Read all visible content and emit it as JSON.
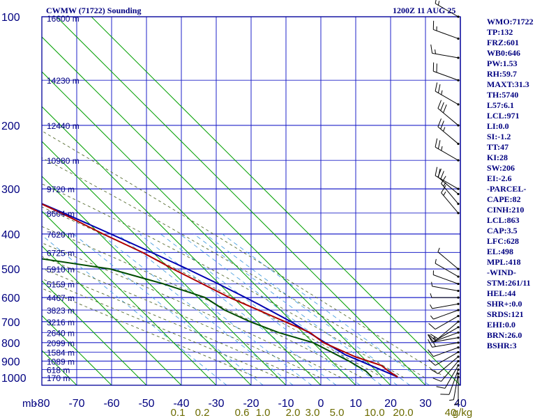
{
  "header": {
    "title": "CWMW (71722) Sounding",
    "time": "1200Z 11 AUG 25"
  },
  "stats": [
    "WMO:71722",
    "TP:132",
    "FRZ:601",
    "WB0:646",
    "PW:1.53",
    "RH:59.7",
    "MAXT:31.3",
    "TH:5740",
    "L57:6.1",
    "LCL:971",
    "LI:0.0",
    "SI:-1.2",
    "TT:47",
    "KI:28",
    "SW:206",
    "EI:-2.6",
    "-PARCEL-",
    "CAPE:82",
    "CINH:210",
    "LCL:863",
    "CAP:3.5",
    "LFC:628",
    "EL:498",
    "MPL:418",
    "-WIND-",
    "STM:261/11",
    "HEL:44",
    "SHR+:0.0",
    "SRDS:121",
    "EHI:0.0",
    "BRN:26.0",
    "BSHR:3"
  ],
  "colors": {
    "frame": "#000099",
    "grid": "#1e22c8",
    "dry_adiabat": "#00a000",
    "moist_adiabat": "#556b2f",
    "mixing_ratio": "#4aa0e0",
    "temperature": "#b00000",
    "dewpoint": "#004d00",
    "parcel": "#0000b0",
    "axis_text": "#000080",
    "mixing_text": "#6b6b00"
  },
  "chart_data": {
    "type": "skew-t",
    "pressure_levels": [
      100,
      200,
      300,
      400,
      500,
      600,
      700,
      800,
      900,
      1000
    ],
    "pressure_tick_labels": [
      "100",
      "200",
      "300",
      "400",
      "500",
      "600",
      "700",
      "800",
      "900",
      "1000"
    ],
    "axis_unit_label": "mb",
    "temperature_ticks": [
      -80,
      -70,
      -60,
      -50,
      -40,
      -30,
      -20,
      -10,
      0,
      10,
      20,
      30,
      40
    ],
    "temperature_tick_labels": [
      "-80",
      "-70",
      "-60",
      "-50",
      "-40",
      "-30",
      "-20",
      "-10",
      "0",
      "10",
      "20",
      "30",
      "40"
    ],
    "mixing_ratio_labels": [
      "0.1",
      "0.2",
      "0.6",
      "1.0",
      "2.0",
      "3.0",
      "5.0",
      "10.0",
      "20.0",
      "40",
      "g/kg"
    ],
    "height_labels": [
      {
        "p": 100,
        "label": "16600 m"
      },
      {
        "p": 150,
        "label": "14230 m"
      },
      {
        "p": 200,
        "label": "12440 m"
      },
      {
        "p": 250,
        "label": "10980 m"
      },
      {
        "p": 300,
        "label": "9720 m"
      },
      {
        "p": 350,
        "label": "8604 m"
      },
      {
        "p": 400,
        "label": "7620 m"
      },
      {
        "p": 450,
        "label": "6725 m"
      },
      {
        "p": 500,
        "label": "5910 m"
      },
      {
        "p": 550,
        "label": "5159 m"
      },
      {
        "p": 600,
        "label": "4467 m"
      },
      {
        "p": 650,
        "label": "3823 m"
      },
      {
        "p": 700,
        "label": "3216 m"
      },
      {
        "p": 750,
        "label": "2640 m"
      },
      {
        "p": 800,
        "label": "2099 m"
      },
      {
        "p": 850,
        "label": "1584 m"
      },
      {
        "p": 900,
        "label": "1089 m"
      },
      {
        "p": 950,
        "label": "618 m"
      },
      {
        "p": 1000,
        "label": "170 m"
      }
    ],
    "temperature_profile": [
      [
        996,
        24.4
      ],
      [
        960,
        23.5
      ],
      [
        925,
        23
      ],
      [
        875,
        18
      ],
      [
        800,
        13
      ],
      [
        750,
        12
      ],
      [
        700,
        8
      ],
      [
        600,
        -1
      ],
      [
        500,
        -9
      ],
      [
        450,
        -13
      ],
      [
        400,
        -19
      ],
      [
        350,
        -25
      ],
      [
        300,
        -33
      ],
      [
        250,
        -42
      ],
      [
        200,
        -52
      ],
      [
        180,
        -54
      ],
      [
        150,
        -63
      ],
      [
        140,
        -66
      ],
      [
        120,
        -61
      ],
      [
        110,
        -60
      ],
      [
        100,
        -58
      ]
    ],
    "dewpoint_profile": [
      [
        996,
        17
      ],
      [
        960,
        17
      ],
      [
        900,
        15
      ],
      [
        800,
        10
      ],
      [
        750,
        3
      ],
      [
        700,
        -2
      ],
      [
        650,
        -6
      ],
      [
        600,
        -8
      ],
      [
        550,
        -16
      ],
      [
        500,
        -27
      ],
      [
        450,
        -54
      ],
      [
        420,
        -42
      ],
      [
        400,
        -37
      ],
      [
        375,
        -38
      ],
      [
        370,
        -53
      ],
      [
        300,
        -55
      ],
      [
        270,
        -60
      ],
      [
        260,
        -60
      ],
      [
        240,
        -62
      ],
      [
        220,
        -65
      ],
      [
        210,
        -66
      ],
      [
        200,
        -65
      ],
      [
        160,
        -70
      ],
      [
        140,
        -73
      ],
      [
        130,
        -77
      ],
      [
        120,
        -80
      ]
    ],
    "parcel_profile": [
      [
        996,
        24.4
      ],
      [
        960,
        22.2
      ],
      [
        900,
        18.3
      ],
      [
        863,
        15.7
      ],
      [
        800,
        13.5
      ],
      [
        700,
        9.7
      ],
      [
        628,
        5.5
      ],
      [
        600,
        3.6
      ],
      [
        550,
        -0.3
      ],
      [
        500,
        -4.9
      ],
      [
        450,
        -10.4
      ],
      [
        400,
        -16.8
      ],
      [
        350,
        -24.3
      ],
      [
        300,
        -33.5
      ],
      [
        250,
        -44.5
      ],
      [
        200,
        -57.9
      ],
      [
        160,
        -71
      ]
    ],
    "wind_barbs": [
      {
        "p": 996,
        "dir": 180,
        "spd": 5
      },
      {
        "p": 975,
        "dir": 190,
        "spd": 5
      },
      {
        "p": 950,
        "dir": 200,
        "spd": 10
      },
      {
        "p": 925,
        "dir": 210,
        "spd": 10
      },
      {
        "p": 900,
        "dir": 220,
        "spd": 10
      },
      {
        "p": 875,
        "dir": 230,
        "spd": 10
      },
      {
        "p": 850,
        "dir": 240,
        "spd": 10
      },
      {
        "p": 825,
        "dir": 250,
        "spd": 10
      },
      {
        "p": 800,
        "dir": 260,
        "spd": 15
      },
      {
        "p": 775,
        "dir": 260,
        "spd": 15
      },
      {
        "p": 750,
        "dir": 250,
        "spd": 15
      },
      {
        "p": 725,
        "dir": 240,
        "spd": 10
      },
      {
        "p": 700,
        "dir": 230,
        "spd": 10
      },
      {
        "p": 675,
        "dir": 240,
        "spd": 10
      },
      {
        "p": 650,
        "dir": 250,
        "spd": 5
      },
      {
        "p": 625,
        "dir": 260,
        "spd": 5
      },
      {
        "p": 600,
        "dir": 270,
        "spd": 5
      },
      {
        "p": 575,
        "dir": 280,
        "spd": 5
      },
      {
        "p": 550,
        "dir": 290,
        "spd": 5
      },
      {
        "p": 525,
        "dir": 300,
        "spd": 5
      },
      {
        "p": 500,
        "dir": 310,
        "spd": 5
      },
      {
        "p": 350,
        "dir": 320,
        "spd": 15
      },
      {
        "p": 330,
        "dir": 320,
        "spd": 15
      },
      {
        "p": 310,
        "dir": 310,
        "spd": 20
      },
      {
        "p": 300,
        "dir": 300,
        "spd": 20
      },
      {
        "p": 250,
        "dir": 300,
        "spd": 25
      },
      {
        "p": 225,
        "dir": 310,
        "spd": 25
      },
      {
        "p": 200,
        "dir": 310,
        "spd": 30
      },
      {
        "p": 175,
        "dir": 300,
        "spd": 25
      },
      {
        "p": 150,
        "dir": 290,
        "spd": 20
      },
      {
        "p": 130,
        "dir": 280,
        "spd": 15
      },
      {
        "p": 115,
        "dir": 290,
        "spd": 15
      },
      {
        "p": 100,
        "dir": 300,
        "spd": 15
      }
    ]
  }
}
